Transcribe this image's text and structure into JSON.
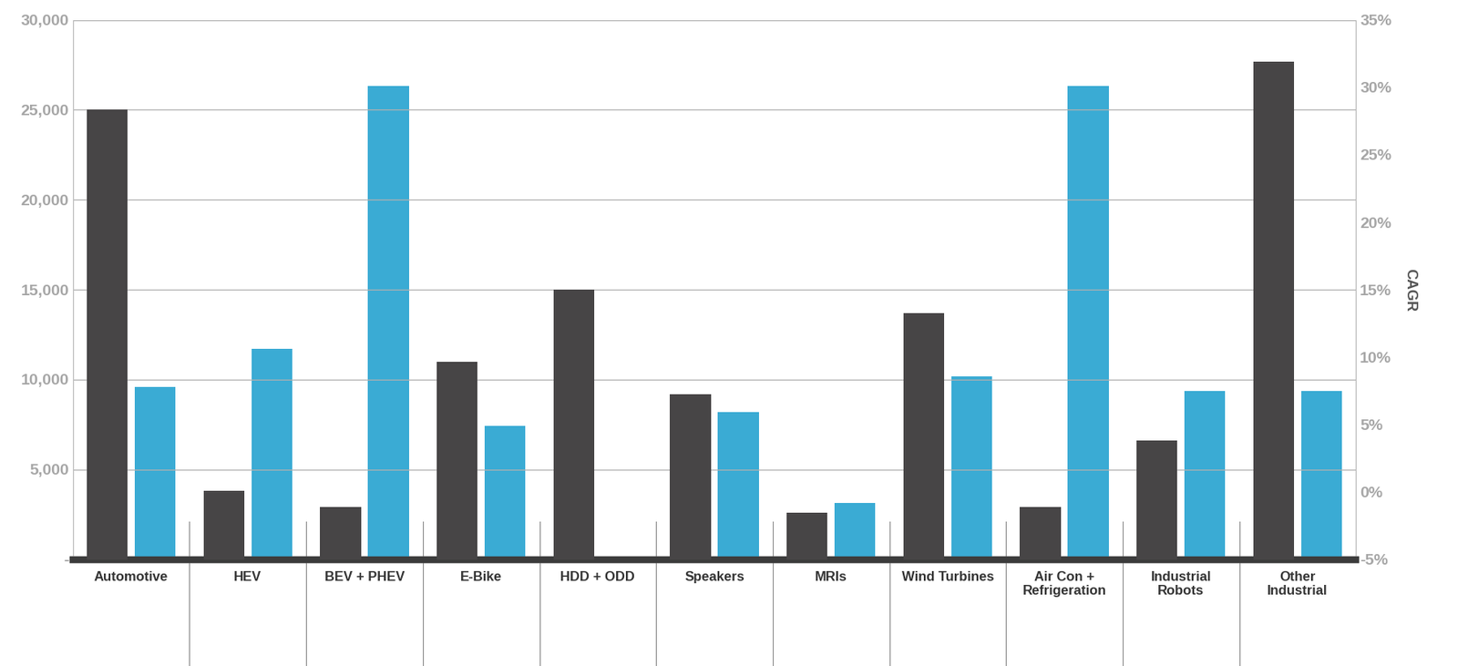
{
  "chart_data": {
    "type": "bar",
    "categories": [
      "Automotive",
      "HEV",
      "BEV + PHEV",
      "E-Bike",
      "HDD + ODD",
      "Speakers",
      "MRIs",
      "Wind Turbines",
      "Air Con + Refrigeration",
      "Industrial Robots",
      "Other Industrial"
    ],
    "series": [
      {
        "color": "#474546",
        "values": [
          25000,
          3800,
          2900,
          11000,
          15000,
          9200,
          2600,
          13700,
          2900,
          6600,
          27700
        ]
      },
      {
        "color": "#3aabd4",
        "axis": "y2",
        "values": [
          7.8,
          10.6,
          30.1,
          4.9,
          null,
          5.9,
          -0.8,
          8.6,
          30.1,
          7.5,
          7.5
        ]
      }
    ],
    "ylim": [
      0,
      30000
    ],
    "yticks": [
      {
        "value": 0,
        "label": "-"
      },
      {
        "value": 5000,
        "label": "5,000"
      },
      {
        "value": 10000,
        "label": "10,000"
      },
      {
        "value": 15000,
        "label": "15,000"
      },
      {
        "value": 20000,
        "label": "20,000"
      },
      {
        "value": 25000,
        "label": "25,000"
      },
      {
        "value": 30000,
        "label": "30,000"
      }
    ],
    "y2label": "CAGR",
    "y2lim": [
      -5,
      35
    ],
    "y2ticks": [
      {
        "value": -5,
        "label": "-5%"
      },
      {
        "value": 0,
        "label": "0%"
      },
      {
        "value": 5,
        "label": "5%"
      },
      {
        "value": 10,
        "label": "10%"
      },
      {
        "value": 15,
        "label": "15%"
      },
      {
        "value": 20,
        "label": "20%"
      },
      {
        "value": 25,
        "label": "25%"
      },
      {
        "value": 30,
        "label": "30%"
      },
      {
        "value": 35,
        "label": "35%"
      }
    ],
    "grid": true
  }
}
